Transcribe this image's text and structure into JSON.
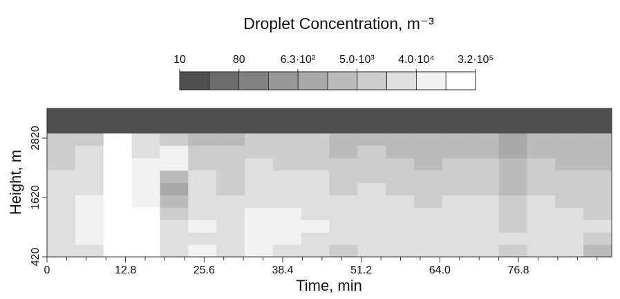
{
  "chart_data": {
    "type": "heatmap",
    "title": "Droplet Concentration, m⁻³",
    "x_label": "Time, min",
    "y_label": "Height, m",
    "xlim": [
      0,
      92
    ],
    "ylim": [
      420,
      3420
    ],
    "xticks": [
      0,
      12.8,
      25.6,
      38.4,
      51.2,
      {
        "value": 64,
        "label": "64.0"
      },
      76.8
    ],
    "xminorticks": [
      3.2,
      6.4,
      9.6,
      16,
      19.2,
      22.4,
      28.8,
      32,
      35.2,
      41.6,
      44.8,
      48,
      54.4,
      57.6,
      60.8,
      67.2,
      70.4,
      73.6,
      80,
      83.2,
      86.4,
      89.6
    ],
    "yticks": [
      420,
      1620,
      2820
    ],
    "xbins": [
      0,
      4.6,
      9.2,
      13.8,
      18.4,
      23,
      27.6,
      32.2,
      36.8,
      41.4,
      46,
      50.6,
      55.2,
      59.8,
      64.4,
      69,
      73.6,
      78.2,
      82.8,
      87.4,
      92
    ],
    "ybins": [
      420,
      670,
      920,
      1170,
      1420,
      1670,
      1920,
      2170,
      2420,
      2670,
      2920,
      3170,
      3420
    ],
    "z": [
      [
        20000,
        40000,
        150000,
        200000,
        20000,
        60000,
        30000,
        50000,
        40000,
        30000,
        8000,
        40000,
        30000,
        20000,
        30000,
        40000,
        10000,
        40000,
        30000,
        5000
      ],
      [
        30000,
        60000,
        200000,
        200000,
        30000,
        40000,
        20000,
        60000,
        50000,
        40000,
        20000,
        30000,
        20000,
        30000,
        20000,
        30000,
        15000,
        30000,
        20000,
        10000
      ],
      [
        40000,
        80000,
        250000,
        200000,
        15000,
        50000,
        30000,
        80000,
        60000,
        50000,
        30000,
        40000,
        30000,
        20000,
        30000,
        20000,
        8000,
        30000,
        20000,
        20000
      ],
      [
        30000,
        60000,
        200000,
        150000,
        8000,
        40000,
        20000,
        60000,
        50000,
        40000,
        20000,
        30000,
        20000,
        15000,
        20000,
        20000,
        10000,
        20000,
        15000,
        10000
      ],
      [
        20000,
        50000,
        200000,
        100000,
        3000,
        30000,
        15000,
        40000,
        30000,
        30000,
        15000,
        20000,
        15000,
        10000,
        15000,
        15000,
        8000,
        15000,
        10000,
        8000
      ],
      [
        20000,
        40000,
        250000,
        80000,
        1500,
        20000,
        10000,
        30000,
        20000,
        20000,
        10000,
        15000,
        10000,
        8000,
        10000,
        10000,
        5000,
        10000,
        8000,
        8000
      ],
      [
        15000,
        30000,
        250000,
        60000,
        4000,
        15000,
        10000,
        20000,
        15000,
        15000,
        8000,
        10000,
        8000,
        6000,
        8000,
        8000,
        3000,
        8000,
        6000,
        6000
      ],
      [
        10000,
        20000,
        250000,
        50000,
        50000,
        10000,
        8000,
        15000,
        10000,
        10000,
        6000,
        8000,
        6000,
        5000,
        6000,
        6000,
        2000,
        6000,
        5000,
        5000
      ],
      [
        8000,
        15000,
        200000,
        40000,
        80000,
        6000,
        6000,
        10000,
        8000,
        8000,
        5000,
        6000,
        5000,
        4000,
        5000,
        5000,
        1500,
        5000,
        4000,
        4000
      ],
      [
        6000,
        10000,
        150000,
        20000,
        10000,
        4000,
        5000,
        8000,
        6000,
        6000,
        4000,
        4000,
        3000,
        2000,
        3000,
        3000,
        1000,
        3000,
        3000,
        3000
      ],
      [
        10,
        10,
        10,
        10,
        10,
        10,
        10,
        10,
        10,
        10,
        10,
        10,
        10,
        10,
        10,
        10,
        10,
        10,
        10,
        10
      ],
      [
        10,
        10,
        10,
        10,
        10,
        10,
        10,
        10,
        10,
        10,
        10,
        10,
        10,
        10,
        10,
        10,
        10,
        10,
        10,
        10
      ]
    ],
    "zscale": "log",
    "zlim": [
      10,
      320000
    ],
    "zticks": [
      10,
      80,
      {
        "value": 630,
        "label": "6.3·10²"
      },
      {
        "value": 5000,
        "label": "5.0·10³"
      },
      {
        "value": 40000,
        "label": "4.0·10⁴"
      },
      {
        "value": 320000,
        "label": "3.2·10⁵"
      }
    ],
    "colorscale": [
      "#4f4f4f",
      "#6c6c6c",
      "#828282",
      "#979797",
      "#a9a9a9",
      "#bbbbbb",
      "#cdcdcd",
      "#dfdfdf",
      "#f2f2f2",
      "#ffffff"
    ]
  }
}
